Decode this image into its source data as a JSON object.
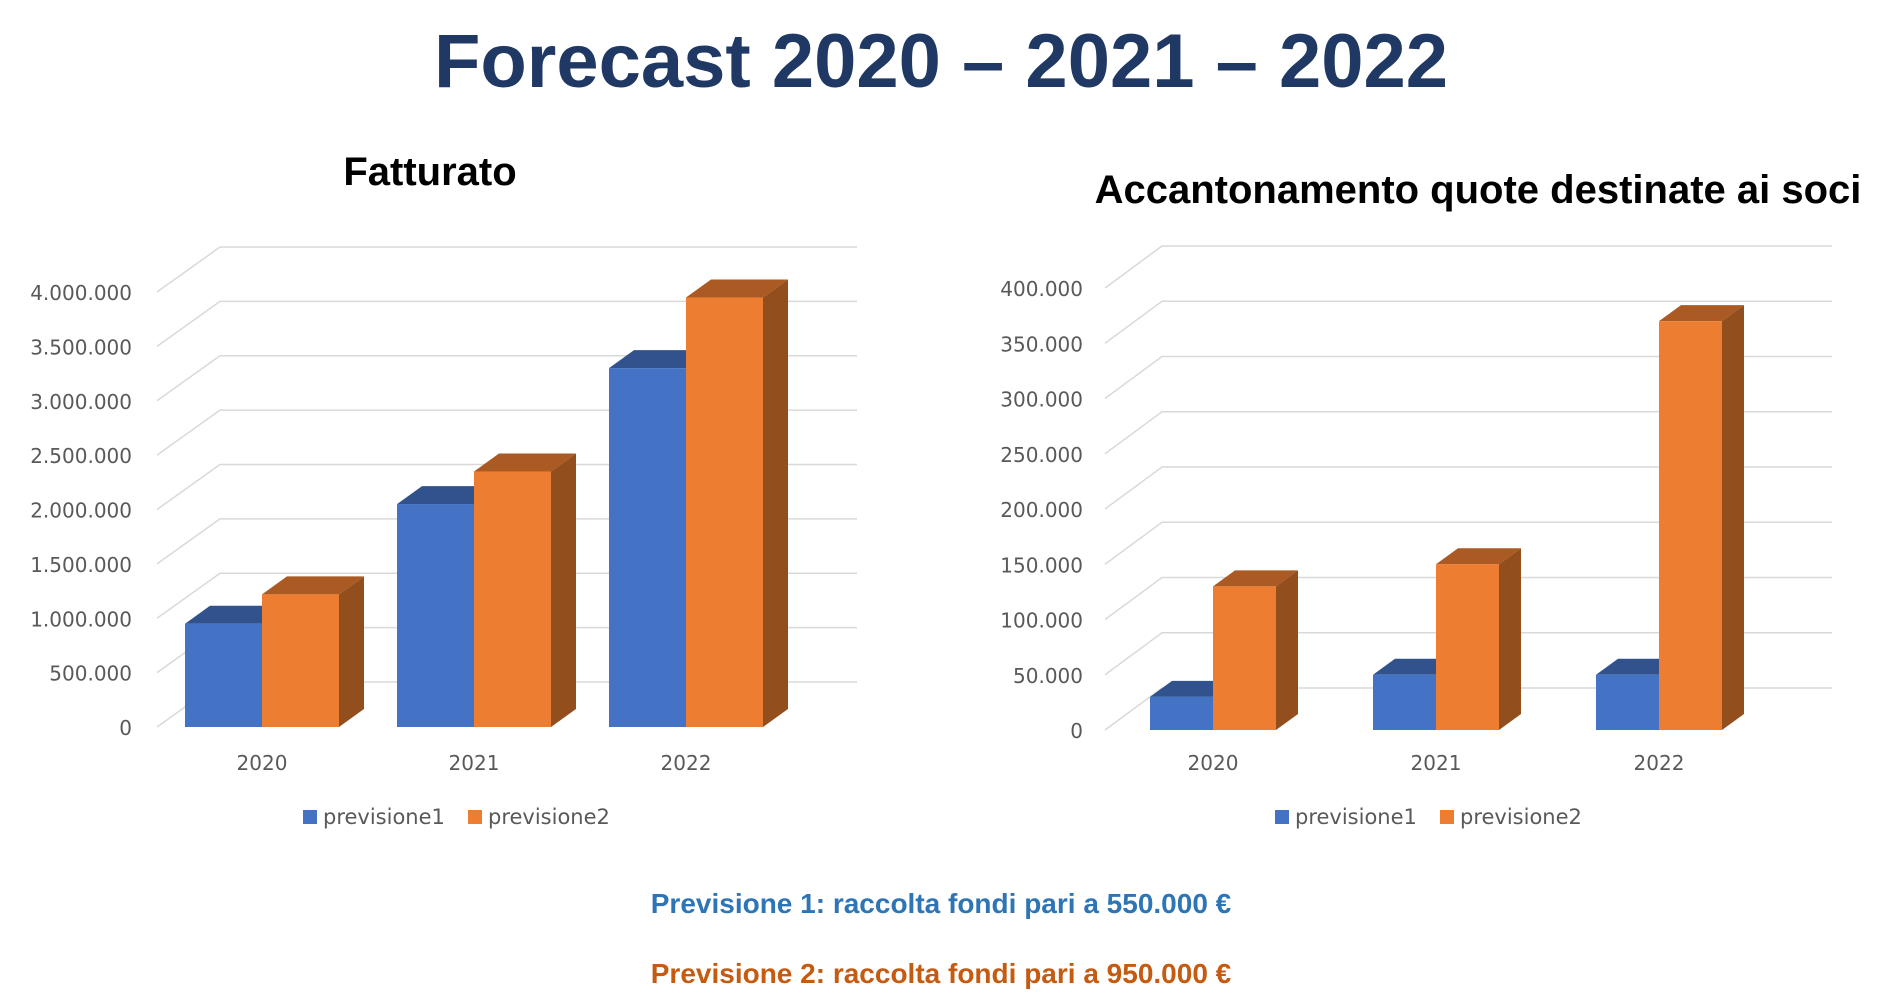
{
  "page": {
    "title": "Forecast 2020 – 2021 – 2022",
    "note1": "Previsione 1: raccolta fondi pari a 550.000 €",
    "note2": "Previsione 2: raccolta fondi pari a 950.000 €",
    "note1_color": "#2e75b6",
    "note2_color": "#c55a11"
  },
  "colors": {
    "previsione1": "#4472c4",
    "previsione2": "#ed7d31",
    "title": "#1f3864",
    "grid": "#d9d9d9",
    "tick_text": "#595959"
  },
  "chart_data": [
    {
      "type": "bar",
      "style": "3d-clustered-column",
      "title": "Fatturato",
      "categories": [
        "2020",
        "2021",
        "2022"
      ],
      "series": [
        {
          "name": "previsione1",
          "values": [
            950000,
            2050000,
            3300000
          ]
        },
        {
          "name": "previsione2",
          "values": [
            1220000,
            2350000,
            3950000
          ]
        }
      ],
      "ylim": [
        0,
        4000000
      ],
      "ticks": [
        {
          "value": 0,
          "label": "0"
        },
        {
          "value": 500000,
          "label": "500.000"
        },
        {
          "value": 1000000,
          "label": "1.000.000"
        },
        {
          "value": 1500000,
          "label": "1.500.000"
        },
        {
          "value": 2000000,
          "label": "2.000.000"
        },
        {
          "value": 2500000,
          "label": "2.500.000"
        },
        {
          "value": 3000000,
          "label": "3.000.000"
        },
        {
          "value": 3500000,
          "label": "3.500.000"
        },
        {
          "value": 4000000,
          "label": "4.000.000"
        }
      ],
      "grid": true,
      "legend": "bottom"
    },
    {
      "type": "bar",
      "style": "3d-clustered-column",
      "title": "Accantonamento quote destinate ai soci",
      "categories": [
        "2020",
        "2021",
        "2022"
      ],
      "series": [
        {
          "name": "previsione1",
          "values": [
            30000,
            50000,
            50000
          ]
        },
        {
          "name": "previsione2",
          "values": [
            130000,
            150000,
            370000
          ]
        }
      ],
      "ylim": [
        0,
        400000
      ],
      "ticks": [
        {
          "value": 0,
          "label": "0"
        },
        {
          "value": 50000,
          "label": "50.000"
        },
        {
          "value": 100000,
          "label": "100.000"
        },
        {
          "value": 150000,
          "label": "150.000"
        },
        {
          "value": 200000,
          "label": "200.000"
        },
        {
          "value": 250000,
          "label": "250.000"
        },
        {
          "value": 300000,
          "label": "300.000"
        },
        {
          "value": 350000,
          "label": "350.000"
        },
        {
          "value": 400000,
          "label": "400.000"
        }
      ],
      "grid": true,
      "legend": "bottom"
    }
  ]
}
